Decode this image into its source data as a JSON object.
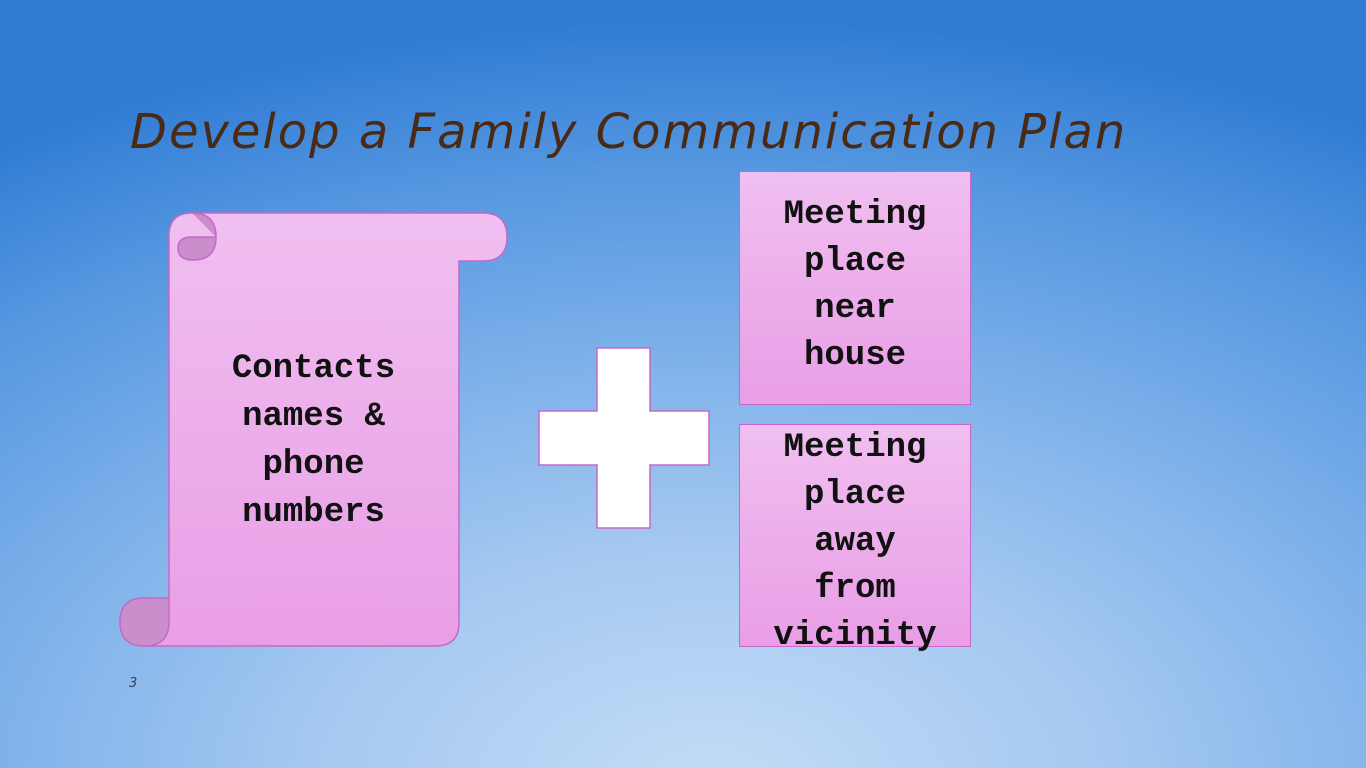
{
  "slide": {
    "title": "Develop a Family Communication Plan",
    "slide_number": "3"
  },
  "scroll": {
    "lines": [
      "Contacts",
      "names &",
      "phone",
      "numbers"
    ]
  },
  "plus": {
    "icon": "plus-icon"
  },
  "boxes": [
    {
      "lines": [
        "Meeting",
        "place",
        "near",
        "house"
      ]
    },
    {
      "lines": [
        "Meeting",
        "place",
        "away",
        "from",
        "vicinity"
      ]
    }
  ],
  "colors": {
    "title": "#4a2a14",
    "shape_fill_top": "#f0bff0",
    "shape_fill_bottom": "#e99ee6",
    "shape_border": "#c568c8",
    "plus_fill": "#ffffff"
  }
}
